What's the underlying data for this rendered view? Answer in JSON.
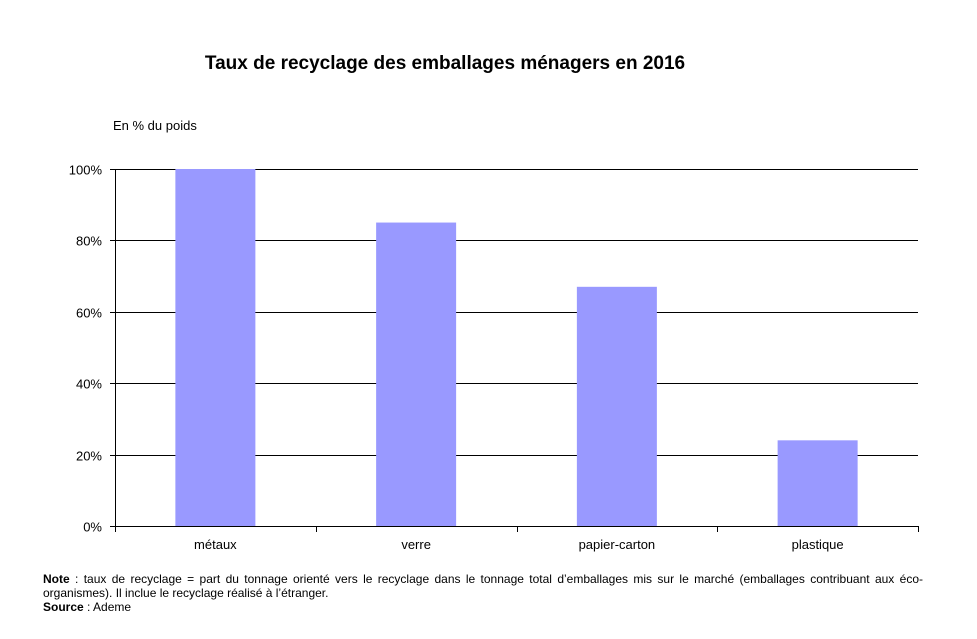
{
  "chart_data": {
    "type": "bar",
    "title": "Taux de recyclage des emballages ménagers en 2016",
    "ylabel": "En % du poids",
    "xlabel": "",
    "categories": [
      "métaux",
      "verre",
      "papier-carton",
      "plastique"
    ],
    "values": [
      100,
      85,
      67,
      24
    ],
    "ylim": [
      0,
      100
    ],
    "yticks": [
      0,
      20,
      40,
      60,
      80,
      100
    ],
    "ytick_labels": [
      "0%",
      "20%",
      "40%",
      "60%",
      "80%",
      "100%"
    ],
    "grid": true,
    "bar_color": "#9999ff",
    "legend": "none"
  },
  "notes": {
    "note_label": "Note",
    "note_text": " : taux de recyclage = part du tonnage orienté vers le recyclage dans le tonnage total d’emballages mis sur le marché (emballages contribuant aux éco-organismes).  Il inclue le recyclage réalisé à l’étranger.",
    "source_label": "Source",
    "source_text": " : Ademe"
  }
}
